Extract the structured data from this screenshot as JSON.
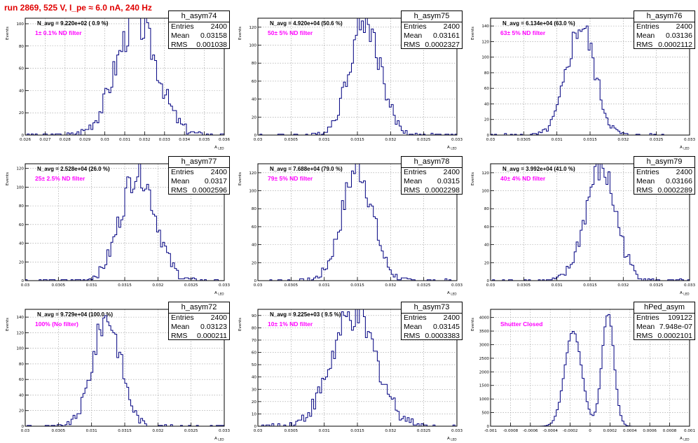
{
  "page": {
    "title": "run 2869,   525 V, I_pe ≈ 6.0 nA, 240 Hz"
  },
  "stat_labels": {
    "entries": "Entries",
    "mean": "Mean",
    "rms": "RMS"
  },
  "colors": {
    "histogram": "#000080",
    "filter_label": "#ff00ff",
    "title": "#e00000"
  },
  "chart_data": [
    {
      "type": "histogram",
      "name": "h_asym74",
      "entries": "2400",
      "mean_str": "0.03158",
      "rms_str": "0.001038",
      "mean": 0.03158,
      "rms": 0.001038,
      "n_avg": "N_avg = 9.220e+02 ( 0.9 %)",
      "filter": "1± 0.1% ND filter",
      "xlabel": "A_LED",
      "ylabel": "Events",
      "xticks": [
        "0.026",
        "0.027",
        "0.028",
        "0.029",
        "0.03",
        "0.031",
        "0.032",
        "0.033",
        "0.034",
        "0.035",
        "0.036"
      ],
      "yticks": [
        "0",
        "20",
        "40",
        "60",
        "80",
        "100"
      ],
      "xlim": [
        0.026,
        0.036
      ],
      "ylim": [
        0,
        105
      ],
      "ystep": 20,
      "nbins": 100,
      "peak_count": 102,
      "bimodal": false
    },
    {
      "type": "histogram",
      "name": "h_asym75",
      "entries": "2400",
      "mean_str": "0.03161",
      "rms_str": "0.0002327",
      "mean": 0.03161,
      "rms": 0.0002327,
      "n_avg": "N_avg = 4.920e+04 (50.6 %)",
      "filter": "50± 5% ND filter",
      "xlabel": "A_LED",
      "ylabel": "Events",
      "xticks": [
        "0.03",
        "0.0305",
        "0.031",
        "0.0315",
        "0.032",
        "0.0325",
        "0.033"
      ],
      "yticks": [
        "0",
        "20",
        "40",
        "60",
        "80",
        "100",
        "120"
      ],
      "xlim": [
        0.03,
        0.033
      ],
      "ylim": [
        0,
        130
      ],
      "ystep": 20,
      "nbins": 100,
      "peak_count": 128,
      "bimodal": false
    },
    {
      "type": "histogram",
      "name": "h_asym76",
      "entries": "2400",
      "mean_str": "0.03136",
      "rms_str": "0.0002112",
      "mean": 0.03136,
      "rms": 0.0002112,
      "n_avg": "N_avg = 6.134e+04 (63.0 %)",
      "filter": "63± 5% ND filter",
      "xlabel": "A_LED",
      "ylabel": "Events",
      "xticks": [
        "0.03",
        "0.0305",
        "0.031",
        "0.0315",
        "0.032",
        "0.0325",
        "0.033"
      ],
      "yticks": [
        "0",
        "20",
        "40",
        "60",
        "80",
        "100",
        "120",
        "140"
      ],
      "xlim": [
        0.03,
        0.033
      ],
      "ylim": [
        0,
        150
      ],
      "ystep": 20,
      "nbins": 100,
      "peak_count": 140,
      "bimodal": false
    },
    {
      "type": "histogram",
      "name": "h_asym77",
      "entries": "2400",
      "mean_str": "0.0317",
      "rms_str": "0.0002596",
      "mean": 0.0317,
      "rms": 0.0002596,
      "n_avg": "N_avg = 2.528e+04 (26.0 %)",
      "filter": "25± 2.5% ND filter",
      "xlabel": "A_LED",
      "ylabel": "Events",
      "xticks": [
        "0.03",
        "0.0305",
        "0.031",
        "0.0315",
        "0.032",
        "0.0325",
        "0.033"
      ],
      "yticks": [
        "0",
        "20",
        "40",
        "60",
        "80",
        "100",
        "120"
      ],
      "xlim": [
        0.03,
        0.033
      ],
      "ylim": [
        0,
        125
      ],
      "ystep": 20,
      "nbins": 100,
      "peak_count": 118,
      "bimodal": false
    },
    {
      "type": "histogram",
      "name": "h_asym78",
      "entries": "2400",
      "mean_str": "0.0315",
      "rms_str": "0.0002298",
      "mean": 0.0315,
      "rms": 0.0002298,
      "n_avg": "N_avg = 7.688e+04 (79.0 %)",
      "filter": "79± 5% ND filter",
      "xlabel": "A_LED",
      "ylabel": "Events",
      "xticks": [
        "0.03",
        "0.0305",
        "0.031",
        "0.0315",
        "0.032",
        "0.0325",
        "0.033"
      ],
      "yticks": [
        "0",
        "20",
        "40",
        "60",
        "80",
        "100",
        "120"
      ],
      "xlim": [
        0.03,
        0.033
      ],
      "ylim": [
        0,
        130
      ],
      "ystep": 20,
      "nbins": 100,
      "peak_count": 125,
      "bimodal": false
    },
    {
      "type": "histogram",
      "name": "h_asym79",
      "entries": "2400",
      "mean_str": "0.03166",
      "rms_str": "0.0002289",
      "mean": 0.03166,
      "rms": 0.0002289,
      "n_avg": "N_avg = 3.992e+04 (41.0 %)",
      "filter": "40± 4% ND filter",
      "xlabel": "A_LED",
      "ylabel": "Events",
      "xticks": [
        "0.03",
        "0.0305",
        "0.031",
        "0.0315",
        "0.032",
        "0.0325",
        "0.033"
      ],
      "yticks": [
        "0",
        "20",
        "40",
        "60",
        "80",
        "100",
        "120"
      ],
      "xlim": [
        0.03,
        0.033
      ],
      "ylim": [
        0,
        130
      ],
      "ystep": 20,
      "nbins": 100,
      "peak_count": 125,
      "bimodal": false
    },
    {
      "type": "histogram",
      "name": "h_asym72",
      "entries": "2400",
      "mean_str": "0.03123",
      "rms_str": "0.000211",
      "mean": 0.03123,
      "rms": 0.000211,
      "n_avg": "N_avg = 9.729e+04 (100.0 %)",
      "filter": "100% (No filter)",
      "xlabel": "A_LED",
      "ylabel": "Events",
      "xticks": [
        "0.03",
        "0.0305",
        "0.031",
        "0.0315",
        "0.032",
        "0.0325",
        "0.033"
      ],
      "yticks": [
        "0",
        "20",
        "40",
        "60",
        "80",
        "100",
        "120",
        "140"
      ],
      "xlim": [
        0.03,
        0.033
      ],
      "ylim": [
        0,
        150
      ],
      "ystep": 20,
      "nbins": 100,
      "peak_count": 140,
      "bimodal": false
    },
    {
      "type": "histogram",
      "name": "h_asym73",
      "entries": "2400",
      "mean_str": "0.03145",
      "rms_str": "0.0003383",
      "mean": 0.03145,
      "rms": 0.0003383,
      "n_avg": "N_avg = 9.225e+03 ( 9.5 %)",
      "filter": "10± 1% ND filter",
      "xlabel": "A_LED",
      "ylabel": "Events",
      "xticks": [
        "0.03",
        "0.0305",
        "0.031",
        "0.0315",
        "0.032",
        "0.0325",
        "0.033"
      ],
      "yticks": [
        "0",
        "10",
        "20",
        "30",
        "40",
        "50",
        "60",
        "70",
        "80",
        "90"
      ],
      "xlim": [
        0.03,
        0.033
      ],
      "ylim": [
        0,
        95
      ],
      "ystep": 10,
      "nbins": 100,
      "peak_count": 90,
      "bimodal": false
    },
    {
      "type": "histogram",
      "name": "hPed_asym",
      "entries": "109122",
      "mean_str": "7.948e-07",
      "rms_str": "0.0002101",
      "mean": 7.948e-07,
      "rms": 0.0002101,
      "n_avg": "",
      "filter": "Shutter Closed",
      "xlabel": "A_LED",
      "ylabel": "Events",
      "xticks": [
        "-0.001",
        "-0.0008",
        "-0.0006",
        "-0.0004",
        "-0.0002",
        "0",
        "0.0002",
        "0.0004",
        "0.0006",
        "0.0008",
        "0.001"
      ],
      "yticks": [
        "0",
        "500",
        "1000",
        "1500",
        "2000",
        "2500",
        "3000",
        "3500",
        "4000"
      ],
      "xlim": [
        -0.001,
        0.001
      ],
      "ylim": [
        0,
        4300
      ],
      "ystep": 500,
      "nbins": 100,
      "peak_count": 4150,
      "bimodal": true,
      "modes": [
        {
          "mu": -0.00017,
          "sigma": 8.5e-05,
          "peak": 3480
        },
        {
          "mu": 0.00018,
          "sigma": 6e-05,
          "peak": 4150
        }
      ]
    }
  ]
}
